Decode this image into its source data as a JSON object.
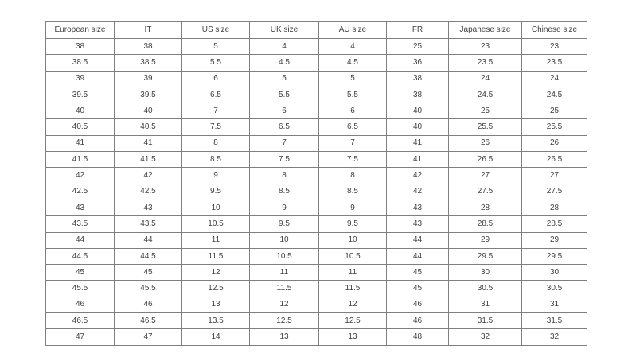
{
  "chart_data": {
    "type": "table",
    "headers": [
      "European size",
      "IT",
      "US size",
      "UK size",
      "AU size",
      "FR",
      "Japanese size",
      "Chinese size"
    ],
    "rows": [
      [
        "38",
        "38",
        "5",
        "4",
        "4",
        "25",
        "23",
        "23"
      ],
      [
        "38.5",
        "38.5",
        "5.5",
        "4.5",
        "4.5",
        "36",
        "23.5",
        "23.5"
      ],
      [
        "39",
        "39",
        "6",
        "5",
        "5",
        "38",
        "24",
        "24"
      ],
      [
        "39.5",
        "39.5",
        "6.5",
        "5.5",
        "5.5",
        "38",
        "24.5",
        "24.5"
      ],
      [
        "40",
        "40",
        "7",
        "6",
        "6",
        "40",
        "25",
        "25"
      ],
      [
        "40.5",
        "40.5",
        "7.5",
        "6.5",
        "6.5",
        "40",
        "25.5",
        "25.5"
      ],
      [
        "41",
        "41",
        "8",
        "7",
        "7",
        "41",
        "26",
        "26"
      ],
      [
        "41.5",
        "41.5",
        "8.5",
        "7.5",
        "7.5",
        "41",
        "26.5",
        "26.5"
      ],
      [
        "42",
        "42",
        "9",
        "8",
        "8",
        "42",
        "27",
        "27"
      ],
      [
        "42.5",
        "42.5",
        "9.5",
        "8.5",
        "8.5",
        "42",
        "27.5",
        "27.5"
      ],
      [
        "43",
        "43",
        "10",
        "9",
        "9",
        "43",
        "28",
        "28"
      ],
      [
        "43.5",
        "43.5",
        "10.5",
        "9.5",
        "9.5",
        "43",
        "28.5",
        "28.5"
      ],
      [
        "44",
        "44",
        "11",
        "10",
        "10",
        "44",
        "29",
        "29"
      ],
      [
        "44.5",
        "44.5",
        "11.5",
        "10.5",
        "10.5",
        "44",
        "29.5",
        "29.5"
      ],
      [
        "45",
        "45",
        "12",
        "11",
        "11",
        "45",
        "30",
        "30"
      ],
      [
        "45.5",
        "45.5",
        "12.5",
        "11.5",
        "11.5",
        "45",
        "30.5",
        "30.5"
      ],
      [
        "46",
        "46",
        "13",
        "12",
        "12",
        "46",
        "31",
        "31"
      ],
      [
        "46.5",
        "46.5",
        "13.5",
        "12.5",
        "12.5",
        "46",
        "31.5",
        "31.5"
      ],
      [
        "47",
        "47",
        "14",
        "13",
        "13",
        "48",
        "32",
        "32"
      ]
    ],
    "layout": {
      "grid": "on",
      "border_color": "#7f7f7f",
      "text_color": "#404040",
      "background": "#ffffff"
    }
  }
}
